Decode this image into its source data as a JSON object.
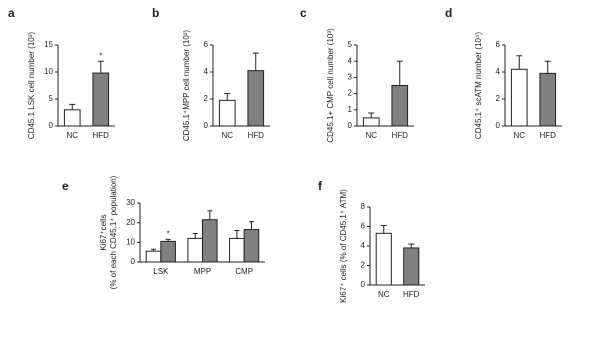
{
  "chart_data": [
    {
      "type": "bar",
      "panel_label": "a",
      "ylabel": [
        "CD45.1 LSK cell number (10³)"
      ],
      "categories": [
        "NC",
        "HFD"
      ],
      "values": [
        3,
        9.8
      ],
      "errors": [
        1,
        2.2
      ],
      "significance": [
        null,
        "*"
      ],
      "colors": [
        "#ffffff",
        "#808080"
      ],
      "ylim": [
        0,
        15
      ],
      "yticks": [
        0,
        5,
        10,
        15
      ]
    },
    {
      "type": "bar",
      "panel_label": "b",
      "ylabel": [
        "CD45.1⁺MPP cell number (10³)"
      ],
      "categories": [
        "NC",
        "HFD"
      ],
      "values": [
        1.9,
        4.1
      ],
      "errors": [
        0.5,
        1.3
      ],
      "colors": [
        "#ffffff",
        "#808080"
      ],
      "ylim": [
        0,
        6
      ],
      "yticks": [
        0,
        2,
        4,
        6
      ]
    },
    {
      "type": "bar",
      "panel_label": "c",
      "ylabel": [
        "CD45.1+ CMP cell number (10³)"
      ],
      "categories": [
        "NC",
        "HFD"
      ],
      "values": [
        0.5,
        2.5
      ],
      "errors": [
        0.3,
        1.5
      ],
      "colors": [
        "#ffffff",
        "#808080"
      ],
      "ylim": [
        0,
        5
      ],
      "yticks": [
        0,
        1,
        2,
        3,
        4,
        5
      ]
    },
    {
      "type": "bar",
      "panel_label": "d",
      "ylabel": [
        "CD45.1⁺ scATM number (10⁴)"
      ],
      "categories": [
        "NC",
        "HFD"
      ],
      "values": [
        4.2,
        3.9
      ],
      "errors": [
        1,
        0.9
      ],
      "colors": [
        "#ffffff",
        "#808080"
      ],
      "ylim": [
        0,
        6
      ],
      "yticks": [
        0,
        2,
        4,
        6
      ]
    },
    {
      "type": "bar",
      "panel_label": "e",
      "ylabel": [
        "Ki67⁺cells",
        "(% of each CD45.1⁺ population)"
      ],
      "categories": [
        "LSK",
        "MPP",
        "CMP"
      ],
      "series": [
        {
          "color": "#ffffff",
          "values": [
            5.5,
            12,
            12
          ],
          "errors": [
            1,
            2.5,
            4
          ]
        },
        {
          "color": "#808080",
          "values": [
            10.5,
            21.5,
            16.5
          ],
          "errors": [
            1,
            4.5,
            4
          ],
          "significance": [
            "*",
            null,
            null
          ]
        }
      ],
      "ylim": [
        0,
        30
      ],
      "yticks": [
        0,
        10,
        20,
        30
      ]
    },
    {
      "type": "bar",
      "panel_label": "f",
      "ylabel": [
        "Ki67⁺ cells (% of CD45.1⁺ ATM)"
      ],
      "categories": [
        "NC",
        "HFD"
      ],
      "values": [
        5.3,
        3.8
      ],
      "errors": [
        0.8,
        0.4
      ],
      "colors": [
        "#ffffff",
        "#808080"
      ],
      "ylim": [
        0,
        8
      ],
      "yticks": [
        0,
        2,
        4,
        6,
        8
      ]
    }
  ]
}
